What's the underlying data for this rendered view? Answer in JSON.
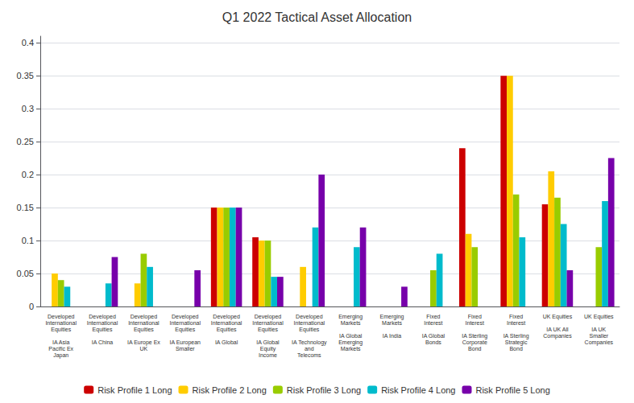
{
  "chart_data": {
    "type": "bar",
    "title": "Q1 2022 Tactical Asset Allocation",
    "categories": [
      "Developed\nInternational\nEquities\n\nIA Asia\nPacific Ex\nJapan",
      "Developed\nInternational\nEquities\n\nIA China",
      "Developed\nInternational\nEquities\n\nIA Europe Ex\nUK",
      "Developed\nInternational\nEquities\n\nIA European\nSmaller",
      "Developed\nInternational\nEquities\n\nIA Global",
      "Developed\nInternational\nEquities\n\nIA Global\nEquity\nIncome",
      "Developed\nInternational\nEquities\n\nIA Technology\nand\nTelecoms",
      "Emerging\nMarkets\n\nIA Global\nEmerging\nMarkets",
      "Emerging\nMarkets\n\nIA India",
      "Fixed\nInterest\n\nIA Global\nBonds",
      "Fixed\nInterest\n\nIA Sterling\nCorporate\nBond",
      "Fixed\nInterest\n\nIA Sterling\nStrategic\nBond",
      "UK Equities\n\nIA UK All\nCompanies",
      "UK Equities\n\nIA UK\nSmaller\nCompanies"
    ],
    "series": [
      {
        "name": "Risk Profile 1 Long",
        "color": "#cc0000",
        "values": [
          0,
          0,
          0,
          0,
          0.15,
          0.105,
          0,
          0,
          0,
          0,
          0.24,
          0.35,
          0.155,
          0
        ]
      },
      {
        "name": "Risk Profile 2 Long",
        "color": "#ffcc00",
        "values": [
          0.05,
          0,
          0.035,
          0,
          0.15,
          0.1,
          0.06,
          0,
          0,
          0,
          0.11,
          0.35,
          0.205,
          0
        ]
      },
      {
        "name": "Risk Profile 3 Long",
        "color": "#99cc00",
        "values": [
          0.04,
          0,
          0.08,
          0,
          0.15,
          0.1,
          0,
          0,
          0,
          0.055,
          0.09,
          0.17,
          0.165,
          0.09
        ]
      },
      {
        "name": "Risk Profile 4 Long",
        "color": "#00bbcc",
        "values": [
          0.03,
          0.035,
          0.06,
          0,
          0.15,
          0.045,
          0.12,
          0.09,
          0,
          0.08,
          0,
          0.105,
          0.125,
          0.16
        ]
      },
      {
        "name": "Risk Profile 5 Long",
        "color": "#7700aa",
        "values": [
          0,
          0.075,
          0,
          0.055,
          0.15,
          0.045,
          0.2,
          0.12,
          0.03,
          0,
          0,
          0,
          0.055,
          0.225
        ]
      }
    ],
    "ylim": [
      0,
      0.41
    ],
    "yticks": [
      0,
      0.05,
      0.1,
      0.15,
      0.2,
      0.25,
      0.3,
      0.35,
      0.4
    ],
    "grid": true,
    "legend": "bottom"
  }
}
